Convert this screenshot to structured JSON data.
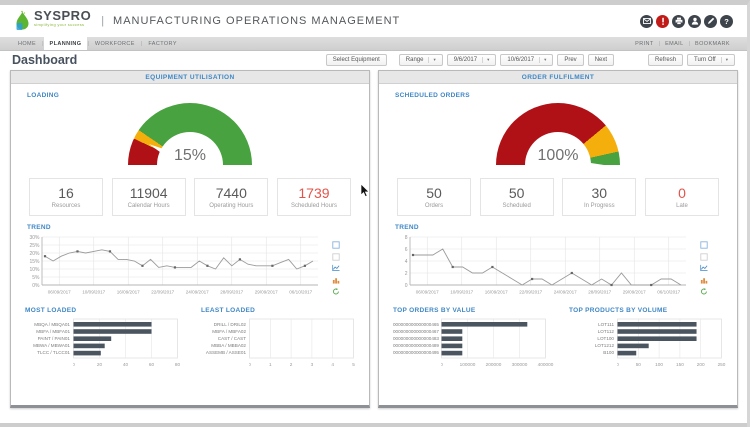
{
  "header": {
    "brand": "SYSPRO",
    "brand_tagline": "simplifying your success",
    "title_separator": "|",
    "app_title": "MANUFACTURING OPERATIONS MANAGEMENT",
    "icons": [
      "mail-icon",
      "alert-icon",
      "print-icon",
      "user-icon",
      "edit-icon",
      "help-icon"
    ],
    "alert_color": "#c11b17"
  },
  "nav": {
    "tabs": [
      {
        "label": "HOME",
        "active": false
      },
      {
        "label": "PLANNING",
        "active": true
      },
      {
        "label": "WORKFORCE",
        "active": false
      },
      {
        "label": "FACTORY",
        "active": false
      }
    ],
    "links": [
      {
        "label": "PRINT"
      },
      {
        "label": "EMAIL"
      },
      {
        "label": "BOOKMARK"
      }
    ]
  },
  "dashboard": {
    "title": "Dashboard",
    "toolbar": {
      "select_equipment": "Select Equipment",
      "range": "Range",
      "date_from": "9/6/2017",
      "date_to": "10/6/2017",
      "prev": "Prev",
      "next": "Next",
      "refresh": "Refresh",
      "turn_off": "Turn Off"
    }
  },
  "chart_tools": [
    "maximize-icon",
    "copy-icon",
    "line-chart-icon",
    "bar-chart-icon",
    "refresh-icon"
  ],
  "colors": {
    "accent_blue": "#3f87c5",
    "bar_fill": "#4a5560",
    "gauge_red": "#b01116",
    "gauge_yellow": "#f5af0d",
    "gauge_green": "#47a23f",
    "stat_alert": "#e2544a"
  },
  "panels": [
    {
      "title": "EQUIPMENT UTILISATION",
      "section_label": "LOADING",
      "gauge": {
        "value_label": "15%",
        "percent": 15,
        "segments": [
          {
            "color": "#b01116",
            "to": 14
          },
          {
            "color": "#f5af0d",
            "to": 19
          },
          {
            "color": "#47a23f",
            "to": 100
          }
        ]
      },
      "stats": [
        {
          "value": "16",
          "label": "Resources"
        },
        {
          "value": "11904",
          "label": "Calendar Hours"
        },
        {
          "value": "7440",
          "label": "Operating Hours"
        },
        {
          "value": "1739",
          "label": "Scheduled Hours",
          "highlight": "#e2544a"
        }
      ],
      "trend": {
        "type": "line",
        "title": "TREND",
        "ylim": [
          0,
          30
        ],
        "yticks": [
          "0%",
          "5%",
          "10%",
          "15%",
          "20%",
          "25%",
          "30%"
        ],
        "xlabels": [
          "06/09/2017",
          "10/09/2017",
          "16/09/2017",
          "22/09/2017",
          "24/09/2017",
          "28/09/2017",
          "29/09/2017",
          "06/10/2017"
        ],
        "values": [
          18,
          15,
          18,
          20,
          21,
          20,
          21,
          22,
          21,
          16,
          16,
          15,
          12,
          16,
          11,
          12,
          11,
          11,
          11,
          15,
          12,
          10,
          17,
          12,
          16,
          13,
          12,
          12,
          12,
          14,
          16,
          10,
          12,
          15
        ]
      },
      "bottom_charts": [
        {
          "type": "bar",
          "title": "MOST LOADED",
          "categories": [
            "MBQA / MBQA01",
            "MBFA / MBFA01",
            "PAINT / PAIN01",
            "MBWA / MBWA01",
            "TLCC / TLCC01"
          ],
          "values": [
            60,
            60,
            29,
            24,
            21
          ],
          "xmax": 80,
          "xticks": [
            0,
            20,
            40,
            60,
            80
          ]
        },
        {
          "type": "bar",
          "title": "LEAST LOADED",
          "categories": [
            "DRILL / DRIL02",
            "MBFA / MBFA02",
            "CAST / CAST",
            "MBBA / MBBA02",
            "ASSEMB / ASSE01"
          ],
          "values": [
            0,
            0,
            0,
            0,
            0
          ],
          "xmax": 5,
          "xticks": [
            0,
            1,
            2,
            3,
            4,
            5
          ]
        }
      ]
    },
    {
      "title": "ORDER FULFILMENT",
      "section_label": "SCHEDULED ORDERS",
      "gauge": {
        "value_label": "100%",
        "percent": 100,
        "segments": [
          {
            "color": "#b01116",
            "to": 78
          },
          {
            "color": "#f5af0d",
            "to": 93
          },
          {
            "color": "#47a23f",
            "to": 100
          }
        ]
      },
      "stats": [
        {
          "value": "50",
          "label": "Orders"
        },
        {
          "value": "50",
          "label": "Scheduled"
        },
        {
          "value": "30",
          "label": "In Progress"
        },
        {
          "value": "0",
          "label": "Late",
          "highlight": "#e2544a"
        }
      ],
      "trend": {
        "type": "line",
        "title": "TREND",
        "ylim": [
          0,
          8
        ],
        "yticks": [
          "0",
          "2",
          "4",
          "6",
          "8"
        ],
        "xlabels": [
          "06/09/2017",
          "10/09/2017",
          "16/09/2017",
          "22/09/2017",
          "24/09/2017",
          "28/09/2017",
          "29/09/2017",
          "06/10/2017"
        ],
        "values": [
          5,
          5,
          5,
          6,
          3,
          3,
          2,
          2,
          3,
          2,
          1,
          0,
          1,
          1,
          0,
          1,
          2,
          1,
          0,
          1,
          0,
          2,
          0,
          0,
          0,
          1,
          1,
          0
        ]
      },
      "bottom_charts": [
        {
          "type": "bar",
          "title": "TOP ORDERS BY VALUE",
          "categories": [
            "000000000000000465",
            "000000000000000467",
            "000000000000000483",
            "000000000000000489",
            "000000000000000495"
          ],
          "values": [
            330000,
            80000,
            80000,
            80000,
            80000
          ],
          "xmax": 400000,
          "xticks": [
            0,
            100000,
            200000,
            300000,
            400000
          ]
        },
        {
          "type": "bar",
          "title": "TOP PRODUCTS BY VOLUME",
          "categories": [
            "LOT111",
            "LOT112",
            "LOT100",
            "LOT1212",
            "B100"
          ],
          "values": [
            190,
            190,
            190,
            75,
            45
          ],
          "xmax": 250,
          "xticks": [
            0,
            50,
            100,
            150,
            200,
            250
          ]
        }
      ]
    }
  ]
}
